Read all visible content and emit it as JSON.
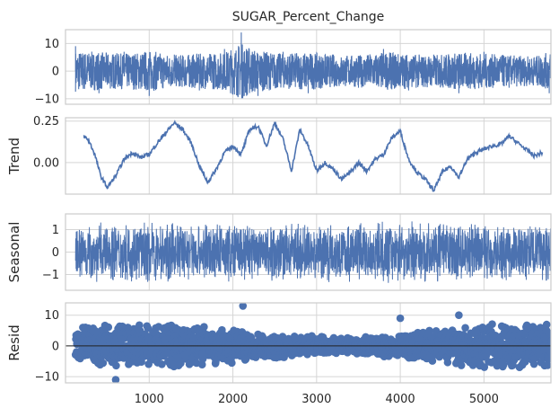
{
  "chart_data": [
    {
      "type": "line",
      "title": "SUGAR_Percent_Change",
      "ylabel": "",
      "xlim": [
        0,
        5800
      ],
      "ylim": [
        -12,
        15
      ],
      "yticks": [
        -10,
        0,
        10
      ],
      "x": [
        120,
        400,
        700,
        1000,
        1300,
        1600,
        1900,
        2100,
        2300,
        2600,
        2900,
        3200,
        3500,
        3800,
        4100,
        4400,
        4700,
        5000,
        5300,
        5600,
        5780
      ],
      "values": [
        9,
        -8,
        7,
        -9,
        6,
        -7,
        8,
        14,
        -9,
        7,
        -8,
        6,
        -6,
        8,
        -7,
        6,
        -8,
        7,
        -6,
        5,
        -8
      ],
      "stroke": "#4c72b0"
    },
    {
      "type": "line",
      "title": "",
      "ylabel": "Trend",
      "xlim": [
        0,
        5800
      ],
      "ylim": [
        -0.19,
        0.27
      ],
      "yticks": [
        0.0,
        0.25
      ],
      "ytick_labels": [
        "0.00",
        "0.25"
      ],
      "x": [
        220,
        280,
        350,
        420,
        500,
        600,
        700,
        800,
        900,
        1000,
        1100,
        1200,
        1300,
        1400,
        1500,
        1600,
        1700,
        1800,
        1900,
        2000,
        2100,
        2200,
        2300,
        2400,
        2500,
        2600,
        2700,
        2800,
        2900,
        3000,
        3100,
        3200,
        3300,
        3400,
        3500,
        3600,
        3700,
        3800,
        3900,
        4000,
        4100,
        4200,
        4300,
        4400,
        4500,
        4600,
        4700,
        4800,
        4900,
        5000,
        5100,
        5200,
        5300,
        5400,
        5500,
        5600,
        5700
      ],
      "values": [
        0.16,
        0.13,
        0.05,
        -0.08,
        -0.15,
        -0.08,
        0.02,
        0.06,
        0.03,
        0.05,
        0.12,
        0.18,
        0.24,
        0.2,
        0.12,
        -0.02,
        -0.12,
        -0.04,
        0.06,
        0.1,
        0.05,
        0.2,
        0.22,
        0.1,
        0.24,
        0.14,
        -0.05,
        0.2,
        0.1,
        -0.05,
        0.0,
        -0.04,
        -0.1,
        -0.06,
        0.0,
        -0.05,
        0.02,
        0.05,
        0.15,
        0.19,
        0.02,
        -0.06,
        -0.1,
        -0.17,
        -0.06,
        -0.02,
        -0.09,
        0.02,
        0.06,
        0.08,
        0.1,
        0.11,
        0.16,
        0.12,
        0.08,
        0.04,
        0.06
      ],
      "stroke": "#4c72b0"
    },
    {
      "type": "line",
      "title": "",
      "ylabel": "Seasonal",
      "xlim": [
        0,
        5800
      ],
      "ylim": [
        -1.7,
        1.7
      ],
      "yticks": [
        -1,
        0,
        1
      ],
      "band": [
        -1.4,
        1.4
      ],
      "stroke": "#4c72b0"
    },
    {
      "type": "scatter",
      "title": "",
      "ylabel": "Resid",
      "xlim": [
        0,
        5800
      ],
      "ylim": [
        -12,
        14
      ],
      "yticks": [
        -10,
        0,
        10
      ],
      "reference_line": 0,
      "outliers": [
        {
          "x": 2120,
          "y": 13
        },
        {
          "x": 4000,
          "y": 9
        },
        {
          "x": 4700,
          "y": 10
        },
        {
          "x": 600,
          "y": -11
        }
      ],
      "fill": "#4c72b0"
    }
  ],
  "shared_x_axis": {
    "ticks": [
      1000,
      2000,
      3000,
      4000,
      5000
    ]
  }
}
